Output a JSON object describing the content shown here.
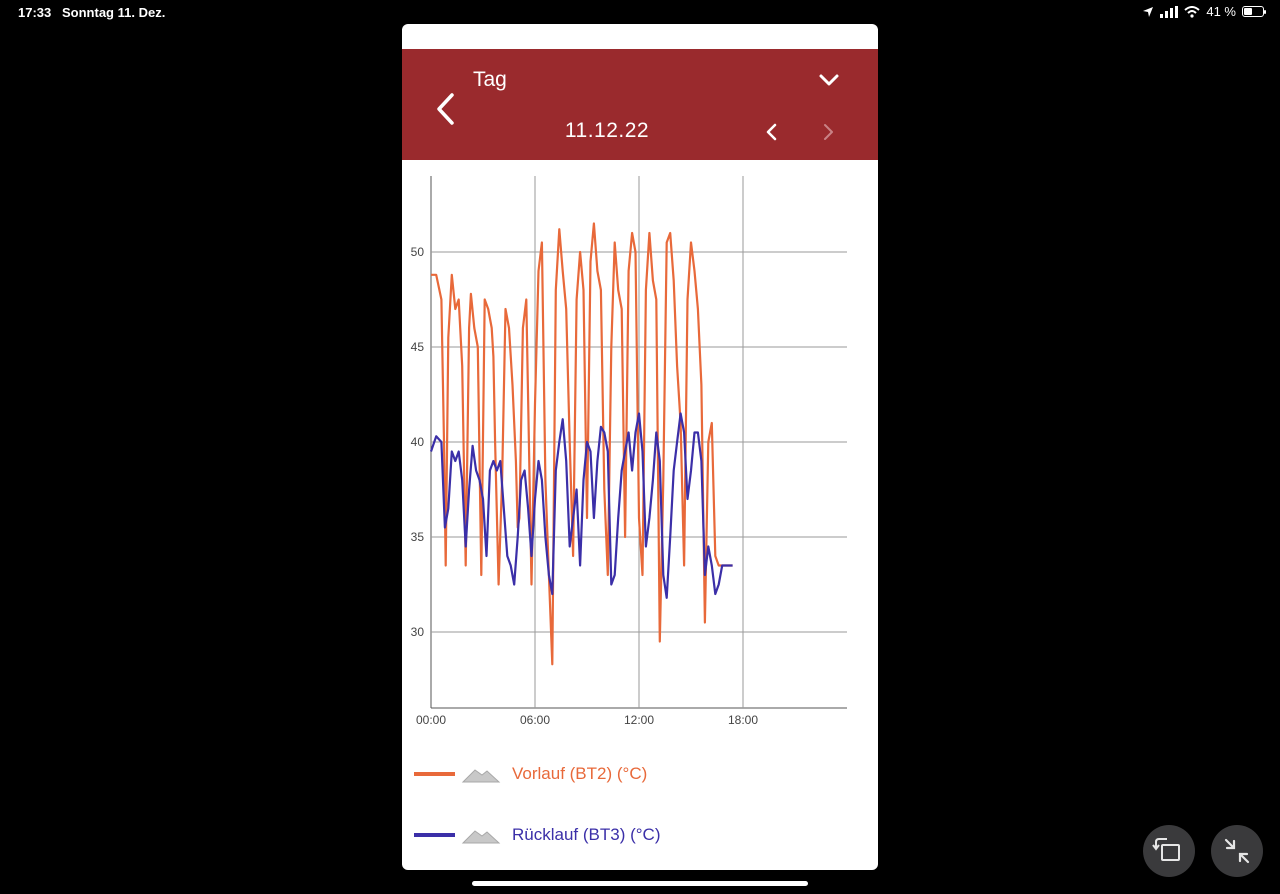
{
  "status_bar": {
    "time": "17:33",
    "date": "Sonntag 11. Dez.",
    "battery": "41 %",
    "icons": [
      "location-icon",
      "cellular-signal-icon",
      "wifi-icon",
      "battery-icon"
    ]
  },
  "header": {
    "title": "Tag",
    "date": "11.12.22",
    "back_icon": "chevron-left-icon",
    "dropdown_icon": "chevron-down-icon",
    "prev_icon": "chevron-left-icon",
    "next_icon": "chevron-right-icon",
    "background": "#9a2a2d"
  },
  "chart_data": {
    "type": "line",
    "title": "",
    "xlabel": "",
    "ylabel": "",
    "x_ticks": [
      "00:00",
      "06:00",
      "12:00",
      "18:00"
    ],
    "y_ticks": [
      30,
      35,
      40,
      45,
      50
    ],
    "xlim_hours": [
      0,
      24
    ],
    "ylim": [
      26,
      54
    ],
    "grid": true,
    "legend_placement": "bottom",
    "series": [
      {
        "name": "Vorlauf (BT2) (°C)",
        "color": "#e8693a",
        "x_hours": [
          0.0,
          0.3,
          0.6,
          0.75,
          0.85,
          1.0,
          1.2,
          1.4,
          1.6,
          1.8,
          2.0,
          2.2,
          2.3,
          2.5,
          2.7,
          2.9,
          3.1,
          3.3,
          3.5,
          3.6,
          3.7,
          3.9,
          4.1,
          4.3,
          4.5,
          4.7,
          4.9,
          5.0,
          5.1,
          5.3,
          5.5,
          5.8,
          6.0,
          6.2,
          6.4,
          6.6,
          6.8,
          7.0,
          7.2,
          7.4,
          7.6,
          7.8,
          8.0,
          8.2,
          8.4,
          8.6,
          8.8,
          9.0,
          9.2,
          9.4,
          9.6,
          9.8,
          10.0,
          10.2,
          10.4,
          10.6,
          10.8,
          11.0,
          11.2,
          11.4,
          11.6,
          11.8,
          12.0,
          12.2,
          12.4,
          12.6,
          12.8,
          13.0,
          13.2,
          13.4,
          13.6,
          13.8,
          14.0,
          14.2,
          14.4,
          14.6,
          14.8,
          15.0,
          15.2,
          15.4,
          15.6,
          15.8,
          16.0,
          16.2,
          16.4,
          16.6,
          16.8,
          17.0,
          17.2,
          17.4
        ],
        "values": [
          48.8,
          48.8,
          47.5,
          40.0,
          33.5,
          45.5,
          48.8,
          47.0,
          47.5,
          44.0,
          33.5,
          46.0,
          47.8,
          46.0,
          45.0,
          33.0,
          47.5,
          47.0,
          46.0,
          44.5,
          40.0,
          32.5,
          38.0,
          47.0,
          46.0,
          43.0,
          39.0,
          35.5,
          36.0,
          46.0,
          47.5,
          32.5,
          42.0,
          49.0,
          50.5,
          38.0,
          33.0,
          28.3,
          48.0,
          51.2,
          49.0,
          47.0,
          40.0,
          34.0,
          47.5,
          50.0,
          48.0,
          36.0,
          49.5,
          51.5,
          49.0,
          48.0,
          37.5,
          33.0,
          45.0,
          50.5,
          48.0,
          47.0,
          35.0,
          49.0,
          51.0,
          50.0,
          36.0,
          33.0,
          48.0,
          51.0,
          48.5,
          47.5,
          29.5,
          38.0,
          50.5,
          51.0,
          48.5,
          44.0,
          41.0,
          33.5,
          47.5,
          50.5,
          49.0,
          47.0,
          43.0,
          30.5,
          40.0,
          41.0,
          34.0,
          33.5,
          33.5,
          33.5,
          33.5,
          33.5
        ]
      },
      {
        "name": "Rücklauf (BT3) (°C)",
        "color": "#3b2fa8",
        "x_hours": [
          0.0,
          0.3,
          0.6,
          0.8,
          1.0,
          1.2,
          1.4,
          1.6,
          1.8,
          2.0,
          2.2,
          2.4,
          2.6,
          2.8,
          3.0,
          3.2,
          3.4,
          3.6,
          3.8,
          4.0,
          4.2,
          4.4,
          4.6,
          4.8,
          5.0,
          5.2,
          5.4,
          5.6,
          5.8,
          6.0,
          6.2,
          6.4,
          6.6,
          6.8,
          7.0,
          7.2,
          7.4,
          7.6,
          7.8,
          8.0,
          8.2,
          8.4,
          8.6,
          8.8,
          9.0,
          9.2,
          9.4,
          9.6,
          9.8,
          10.0,
          10.2,
          10.4,
          10.6,
          10.8,
          11.0,
          11.2,
          11.4,
          11.6,
          11.8,
          12.0,
          12.2,
          12.4,
          12.6,
          12.8,
          13.0,
          13.2,
          13.4,
          13.6,
          13.8,
          14.0,
          14.2,
          14.4,
          14.6,
          14.8,
          15.0,
          15.2,
          15.4,
          15.6,
          15.8,
          16.0,
          16.2,
          16.4,
          16.6,
          16.8,
          17.0,
          17.2,
          17.4
        ],
        "values": [
          39.5,
          40.3,
          40.0,
          35.5,
          36.5,
          39.5,
          39.0,
          39.5,
          38.0,
          34.5,
          37.5,
          39.8,
          38.5,
          38.0,
          37.0,
          34.0,
          38.5,
          39.0,
          38.5,
          39.0,
          36.5,
          34.0,
          33.5,
          32.5,
          35.0,
          38.0,
          38.5,
          36.5,
          34.0,
          37.0,
          39.0,
          38.0,
          35.0,
          33.0,
          32.0,
          38.5,
          40.0,
          41.2,
          39.0,
          34.5,
          36.0,
          37.5,
          33.5,
          38.0,
          40.0,
          39.5,
          36.0,
          39.0,
          40.8,
          40.5,
          39.5,
          32.5,
          33.0,
          36.0,
          38.5,
          39.5,
          40.5,
          38.5,
          40.5,
          41.5,
          39.5,
          34.5,
          36.0,
          38.0,
          40.5,
          39.0,
          33.0,
          31.8,
          35.0,
          38.5,
          40.0,
          41.5,
          40.5,
          37.0,
          38.5,
          40.5,
          40.5,
          39.0,
          33.0,
          34.5,
          33.5,
          32.0,
          32.5,
          33.5,
          33.5,
          33.5,
          33.5
        ]
      }
    ]
  },
  "legend": [
    {
      "label": "Vorlauf (BT2) (°C)",
      "color": "#e8693a",
      "icon": "area-chart-icon"
    },
    {
      "label": "Rücklauf (BT3) (°C)",
      "color": "#3b2fa8",
      "icon": "area-chart-icon"
    }
  ],
  "controls": {
    "rotate_icon": "rotate-window-icon",
    "shrink_icon": "shrink-arrows-icon"
  }
}
